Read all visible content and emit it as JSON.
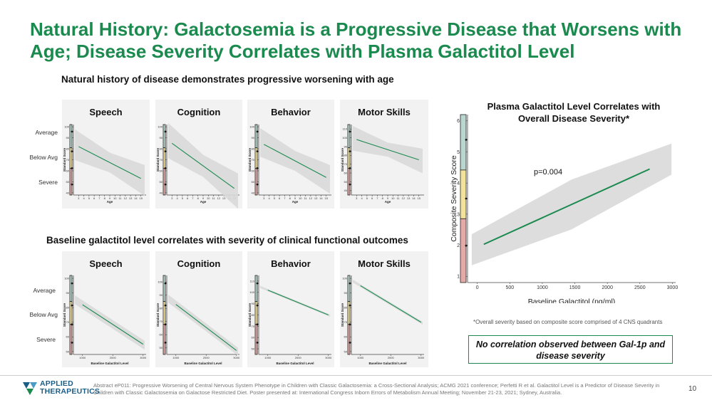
{
  "title": "Natural History: Galactosemia is a Progressive Disease that Worsens with Age; Disease Severity Correlates with Plasma Galactitol Level",
  "section1_title": "Natural history of disease demonstrates progressive worsening with age",
  "section2_title": "Baseline galactitol level correlates with severity of clinical functional outcomes",
  "severity_labels": [
    "Average",
    "Below Avg",
    "Severe"
  ],
  "colors": {
    "title": "#1b8a4f",
    "line": "#1b8a4f",
    "band": "#d9d9d9",
    "accent_green": "#1b8a4f",
    "severity_top": "#b9d6cf",
    "severity_mid": "#f3e39a",
    "severity_low": "#e3aaa8"
  },
  "big_chart": {
    "title": "Plasma Galactitol Level Correlates with Overall Disease Severity*",
    "p_value": "p=0.004"
  },
  "footnote": "*Overall severity based on composite score comprised of 4 CNS quadrants",
  "callout": "No correlation observed between Gal-1p and disease severity",
  "logo": {
    "line1": "APPLIED",
    "line2": "THERAPEUTICS"
  },
  "references": "Abstract eP011: Progressive Worsening of Central Nervous System Phenotype in Children with Classic Galactosemia: a Cross-Sectional Analysis; ACMG 2021 conference; Perfetti R et al. Galactitol Level is a Predictor of Disease Severity in Children with Classic Galactosemia on Galactose Restricted Diet. Poster presented at: International Congress Inborn Errors of Metabolism Annual Meeting; November 21-23, 2021; Sydney, Australia.",
  "page_number": "10",
  "chart_data": [
    {
      "type": "line",
      "title": "Speech",
      "xlabel": "Age",
      "ylabel": "Standard Score",
      "xlim": [
        2,
        16
      ],
      "ylim": [
        38,
        102
      ],
      "x_ticks": [
        3,
        4,
        5,
        6,
        7,
        8,
        9,
        10,
        11,
        12,
        13,
        14,
        15
      ],
      "y_ticks": [
        40,
        50,
        60,
        70,
        80,
        90,
        100
      ],
      "series": [
        {
          "x": [
            3,
            15
          ],
          "y": [
            82,
            53
          ]
        }
      ],
      "band_halfwidth": [
        9,
        14
      ]
    },
    {
      "type": "line",
      "title": "Cognition",
      "xlabel": "Age",
      "ylabel": "Standard Score",
      "xlim": [
        2,
        16
      ],
      "ylim": [
        38,
        102
      ],
      "x_ticks": [
        3,
        4,
        5,
        6,
        7,
        8,
        9,
        10,
        11,
        12,
        13,
        14,
        15
      ],
      "y_ticks": [
        40,
        50,
        60,
        70,
        80,
        90,
        100
      ],
      "series": [
        {
          "x": [
            3,
            15
          ],
          "y": [
            85,
            44
          ]
        }
      ],
      "band_halfwidth": [
        10,
        16
      ]
    },
    {
      "type": "line",
      "title": "Behavior",
      "xlabel": "Age",
      "ylabel": "Standard Score",
      "xlim": [
        2,
        16
      ],
      "ylim": [
        38,
        102
      ],
      "x_ticks": [
        3,
        4,
        5,
        6,
        7,
        8,
        9,
        10,
        11,
        12,
        13,
        14,
        15
      ],
      "y_ticks": [
        40,
        50,
        60,
        70,
        80,
        90,
        100
      ],
      "series": [
        {
          "x": [
            3,
            15
          ],
          "y": [
            84,
            54
          ]
        }
      ],
      "band_halfwidth": [
        9,
        13
      ]
    },
    {
      "type": "line",
      "title": "Motor Skills",
      "xlabel": "Age",
      "ylabel": "Standard Score",
      "xlim": [
        2,
        16
      ],
      "ylim": [
        35,
        115
      ],
      "x_ticks": [
        3,
        4,
        5,
        6,
        7,
        8,
        9,
        10,
        11,
        12,
        13,
        14,
        15
      ],
      "y_ticks": [
        40,
        50,
        60,
        70,
        80,
        90,
        100,
        110
      ],
      "series": [
        {
          "x": [
            3,
            15
          ],
          "y": [
            98,
            75
          ]
        }
      ],
      "band_halfwidth": [
        8,
        14
      ]
    },
    {
      "type": "line",
      "title": "Speech",
      "xlabel": "Baseline Galactitol Level",
      "ylabel": "Standard Score",
      "xlim": [
        700,
        3100
      ],
      "ylim": [
        48,
        102
      ],
      "x_ticks": [
        1000,
        2000,
        3000
      ],
      "y_ticks": [
        50,
        60,
        70,
        80,
        90,
        100
      ],
      "series": [
        {
          "x": [
            1000,
            3000
          ],
          "y": [
            82,
            55
          ]
        }
      ],
      "band_halfwidth": [
        3,
        3
      ]
    },
    {
      "type": "line",
      "title": "Cognition",
      "xlabel": "Baseline Galactitol Level",
      "ylabel": "Standard Score",
      "xlim": [
        700,
        3100
      ],
      "ylim": [
        45,
        105
      ],
      "x_ticks": [
        1000,
        2000,
        3000
      ],
      "y_ticks": [
        50,
        60,
        70,
        80,
        90,
        100
      ],
      "series": [
        {
          "x": [
            1000,
            3000
          ],
          "y": [
            83,
            48
          ]
        }
      ],
      "band_halfwidth": [
        3,
        3
      ]
    },
    {
      "type": "line",
      "title": "Behavior",
      "xlabel": "Baseline Galactitol Level",
      "ylabel": "Standard Score",
      "xlim": [
        700,
        3100
      ],
      "ylim": [
        45,
        115
      ],
      "x_ticks": [
        1000,
        2000,
        3000
      ],
      "y_ticks": [
        50,
        60,
        70,
        80,
        90,
        100,
        110
      ],
      "series": [
        {
          "x": [
            1000,
            3000
          ],
          "y": [
            102,
            80
          ]
        }
      ],
      "band_halfwidth": [
        1,
        1
      ]
    },
    {
      "type": "line",
      "title": "Motor Skills",
      "xlabel": "Baseline Galactitol Level",
      "ylabel": "Standard Score",
      "xlim": [
        700,
        3100
      ],
      "ylim": [
        48,
        102
      ],
      "x_ticks": [
        1000,
        2000,
        3000
      ],
      "y_ticks": [
        50,
        60,
        70,
        80,
        90,
        100
      ],
      "series": [
        {
          "x": [
            1000,
            3000
          ],
          "y": [
            95,
            70
          ]
        }
      ],
      "band_halfwidth": [
        1,
        1
      ]
    },
    {
      "type": "line",
      "title": "Plasma Galactitol Level Correlates with Overall Disease Severity*",
      "xlabel": "Baseline Galactitol (ng/ml)",
      "ylabel": "Composite Severity Score",
      "xlim": [
        -150,
        3050
      ],
      "ylim": [
        0.8,
        6.2
      ],
      "x_ticks": [
        0,
        500,
        1000,
        1500,
        2000,
        2500,
        3000
      ],
      "y_ticks": [
        1,
        2,
        3,
        4,
        5,
        6
      ],
      "series": [
        {
          "x": [
            100,
            2650
          ],
          "y": [
            2.03,
            4.45
          ]
        }
      ],
      "band_halfwidth": [
        0.8,
        0.5
      ]
    }
  ]
}
